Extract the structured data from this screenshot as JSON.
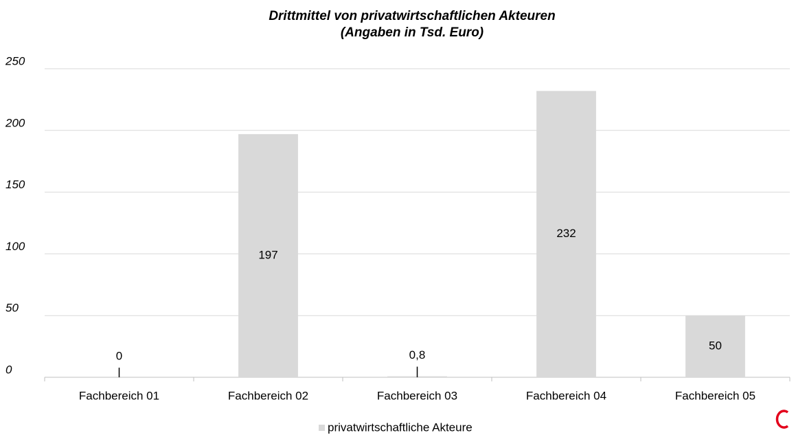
{
  "chart_data": {
    "type": "bar",
    "title": [
      "Drittmittel von privatwirtschaftlichen Akteuren",
      "(Angaben in Tsd. Euro)"
    ],
    "categories": [
      "Fachbereich 01",
      "Fachbereich 02",
      "Fachbereich 03",
      "Fachbereich 04",
      "Fachbereich 05"
    ],
    "series": [
      {
        "name": "privatwirtschaftliche Akteure",
        "color": "#d9d9d9",
        "values": [
          0,
          197,
          0.8,
          232,
          50
        ],
        "value_labels": [
          "0",
          "197",
          "0,8",
          "232",
          "50"
        ]
      }
    ],
    "ylim": [
      0,
      250
    ],
    "yticks": [
      0,
      50,
      100,
      150,
      200,
      250
    ],
    "grid": true,
    "legend": "bottom"
  }
}
